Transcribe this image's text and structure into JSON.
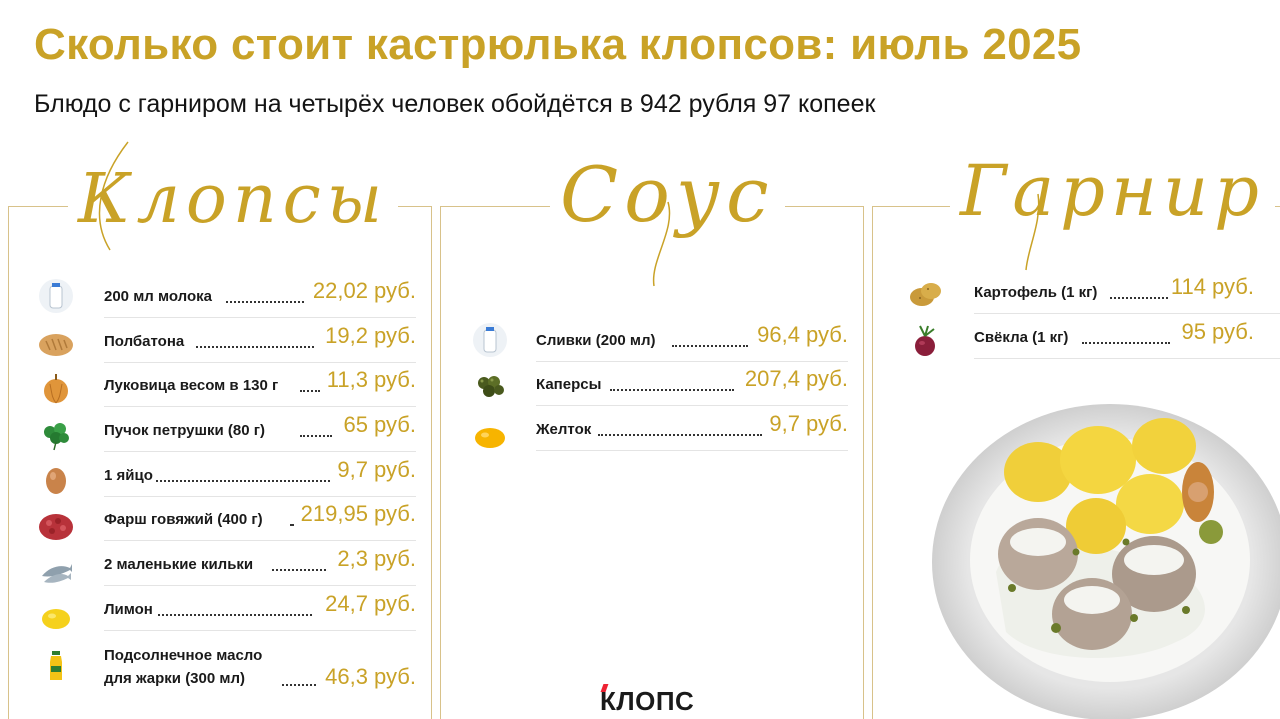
{
  "title": "Сколько стоит кастрюлька клопсов: июль 2025",
  "subtitle": "Блюдо с гарниром на четырёх человек обойдётся в 942 рубля 97 копеек",
  "sections": {
    "klopsy": {
      "heading": "Клопсы",
      "items": [
        {
          "label": "200 мл молока",
          "price": "22,02 руб.",
          "icon": "milk-bottle-icon"
        },
        {
          "label": "Полбатона",
          "price": "19,2 руб.",
          "icon": "bread-icon"
        },
        {
          "label": "Луковица весом в 130 г",
          "price": "11,3 руб.",
          "icon": "onion-icon"
        },
        {
          "label": "Пучок петрушки (80 г)",
          "price": "65 руб.",
          "icon": "parsley-icon"
        },
        {
          "label": "1 яйцо",
          "price": "9,7 руб.",
          "icon": "egg-icon"
        },
        {
          "label": "Фарш говяжий (400 г)",
          "price": "219,95 руб.",
          "icon": "minced-meat-icon"
        },
        {
          "label": "2 маленькие кильки",
          "price": "2,3 руб.",
          "icon": "sprat-fish-icon"
        },
        {
          "label": "Лимон",
          "price": "24,7 руб.",
          "icon": "lemon-icon"
        },
        {
          "label": "Подсолнечное масло",
          "label2": "для жарки (300 мл)",
          "price": "46,3 руб.",
          "icon": "oil-bottle-icon"
        }
      ]
    },
    "sous": {
      "heading": "Соус",
      "items": [
        {
          "label": "Сливки (200 мл)",
          "price": "96,4 руб.",
          "icon": "cream-bottle-icon"
        },
        {
          "label": "Каперсы",
          "price": "207,4 руб.",
          "icon": "capers-icon"
        },
        {
          "label": "Желток",
          "price": "9,7 руб.",
          "icon": "yolk-icon"
        }
      ]
    },
    "garnir": {
      "heading": "Гарнир",
      "items": [
        {
          "label": "Картофель (1 кг)",
          "price": "114 руб.",
          "icon": "potato-icon"
        },
        {
          "label": "Свёкла (1 кг)",
          "price": "95 руб.",
          "icon": "beet-icon"
        }
      ]
    }
  },
  "logo": "КЛОПС",
  "colors": {
    "accent": "#c9a227",
    "text": "#141414",
    "divider": "#e4e4e4",
    "frame": "#d8c28a"
  }
}
